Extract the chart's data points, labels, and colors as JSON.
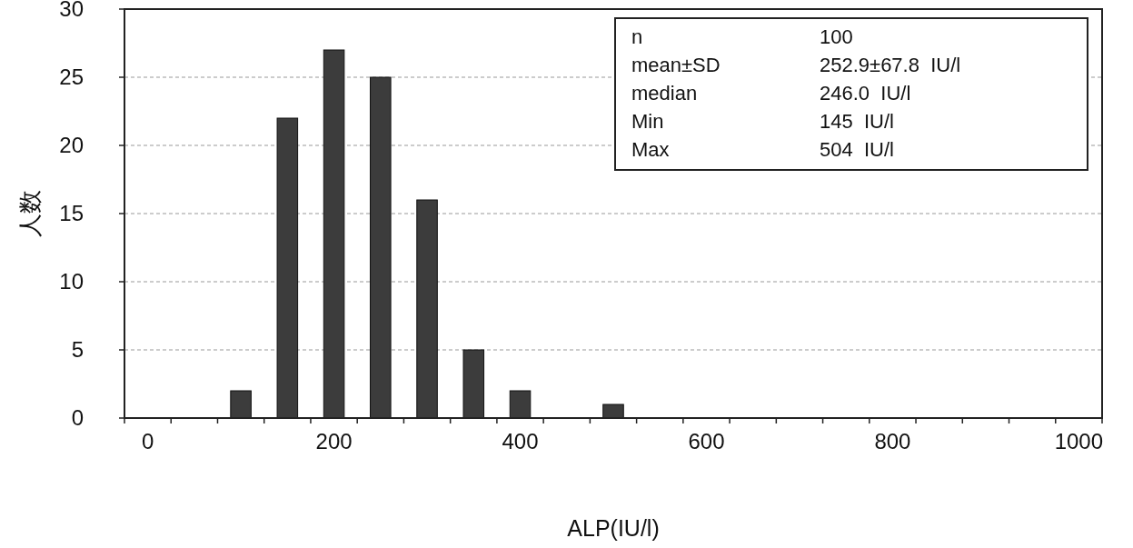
{
  "chart_data": {
    "type": "bar",
    "xlabel": "ALP(IU/l)",
    "ylabel": "人数",
    "categories": [
      "0",
      null,
      null,
      null,
      "200",
      null,
      null,
      null,
      "400",
      null,
      null,
      null,
      "600",
      null,
      null,
      null,
      "800",
      null,
      null,
      null,
      "1000"
    ],
    "values": [
      0,
      0,
      2,
      22,
      27,
      25,
      16,
      5,
      2,
      0,
      1,
      0,
      0,
      0,
      0,
      0,
      0,
      0,
      0,
      0,
      0
    ],
    "color": "#3c3c3c",
    "ylim": [
      0,
      30
    ],
    "yticks": [
      0,
      5,
      10,
      15,
      20,
      25,
      30
    ],
    "grid": "y",
    "annotations": [
      "n",
      "100",
      "mean±SD",
      "252.9±67.8  IU/l",
      "median",
      "246.0  IU/l",
      "Min",
      "145  IU/l",
      "Max",
      "504  IU/l"
    ]
  }
}
